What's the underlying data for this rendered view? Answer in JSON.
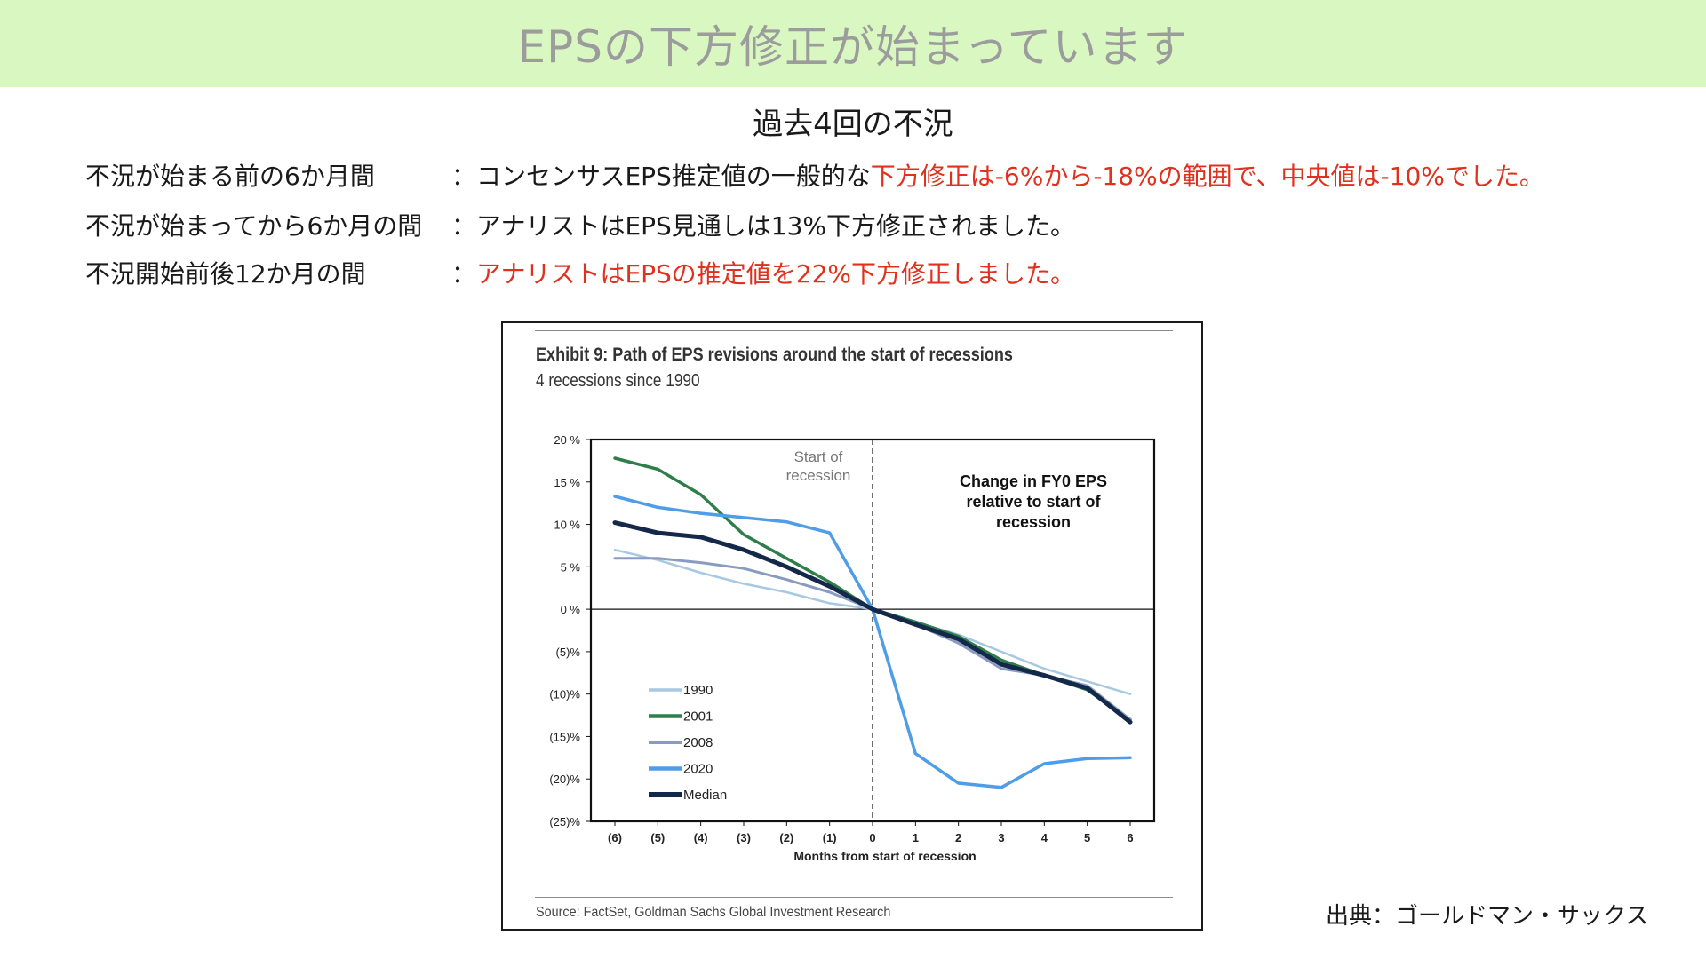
{
  "header": {
    "title": "EPSの下方修正が始まっています"
  },
  "subtitle": "過去4回の不況",
  "rows": [
    {
      "label": "不況が始まる前の6か月間",
      "text_black": "：コンセンサスEPS推定値の一般的な",
      "text_red": "下方修正は-6%から-18%の範囲で、中央値は-10%でした。"
    },
    {
      "label": "不況が始まってから6か月の間",
      "text_black": "：アナリストはEPS見通しは13%下方修正されました。",
      "text_red": ""
    },
    {
      "label": "不況開始前後12か月の間",
      "text_black": "：",
      "text_red": "アナリストはEPSの推定値を22%下方修正しました。"
    }
  ],
  "source_right": "出典：ゴールドマン・サックス",
  "exhibit": {
    "title": "Exhibit 9: Path of EPS revisions around the start of recessions",
    "subtitle": "4 recessions since 1990",
    "source": "Source: FactSet, Goldman Sachs Global Investment Research"
  },
  "colors": {
    "banner": "#d9f8c1",
    "red_text": "#e0301e"
  },
  "chart_data": {
    "type": "line",
    "title": "",
    "xlabel": "Months from start of recession",
    "ylabel": "",
    "x": [
      -6,
      -5,
      -4,
      -3,
      -2,
      -1,
      0,
      1,
      2,
      3,
      4,
      5,
      6
    ],
    "x_tick_labels": [
      "(6)",
      "(5)",
      "(4)",
      "(3)",
      "(2)",
      "(1)",
      "0",
      "1",
      "2",
      "3",
      "4",
      "5",
      "6"
    ],
    "ylim": [
      -25,
      20
    ],
    "y_ticks": [
      20,
      15,
      10,
      5,
      0,
      -5,
      -10,
      -15,
      -20,
      -25
    ],
    "y_tick_labels": [
      "20 %",
      "15 %",
      "10 %",
      "5 %",
      "0 %",
      "(5)%",
      "(10)%",
      "(15)%",
      "(20)%",
      "(25)%"
    ],
    "grid": false,
    "legend_position": "bottom-left",
    "annotations": [
      {
        "text_lines": [
          "Start of",
          "recession"
        ],
        "near": "x=0 top"
      },
      {
        "text_lines": [
          "Change in FY0 EPS",
          "relative to start of",
          "recession"
        ],
        "near": "top-right"
      }
    ],
    "series": [
      {
        "name": "1990",
        "color": "#a6c8e2",
        "stroke": 2.5,
        "values": [
          7.0,
          5.8,
          4.3,
          3.0,
          2.0,
          0.7,
          0,
          -1.5,
          -3.0,
          -5.0,
          -7.0,
          -8.5,
          -10.0
        ]
      },
      {
        "name": "2001",
        "color": "#2e7d4a",
        "stroke": 3.5,
        "values": [
          17.8,
          16.5,
          13.5,
          8.8,
          6.0,
          3.2,
          0,
          -1.5,
          -3.2,
          -6.0,
          -7.8,
          -9.5,
          -13.0
        ]
      },
      {
        "name": "2008",
        "color": "#8a9bc2",
        "stroke": 3,
        "values": [
          6.0,
          6.0,
          5.5,
          4.8,
          3.5,
          2.0,
          0,
          -1.8,
          -4.0,
          -7.0,
          -7.8,
          -9.0,
          -13.0
        ]
      },
      {
        "name": "2020",
        "color": "#4f9de6",
        "stroke": 3.5,
        "values": [
          13.3,
          12.0,
          11.3,
          10.8,
          10.3,
          9.0,
          0,
          -17.0,
          -20.5,
          -21.0,
          -18.2,
          -17.6,
          -17.5
        ]
      },
      {
        "name": "Median",
        "color": "#14284a",
        "stroke": 5,
        "values": [
          10.2,
          9.0,
          8.5,
          7.0,
          5.0,
          2.7,
          0,
          -1.8,
          -3.5,
          -6.5,
          -7.8,
          -9.3,
          -13.3
        ]
      }
    ]
  }
}
